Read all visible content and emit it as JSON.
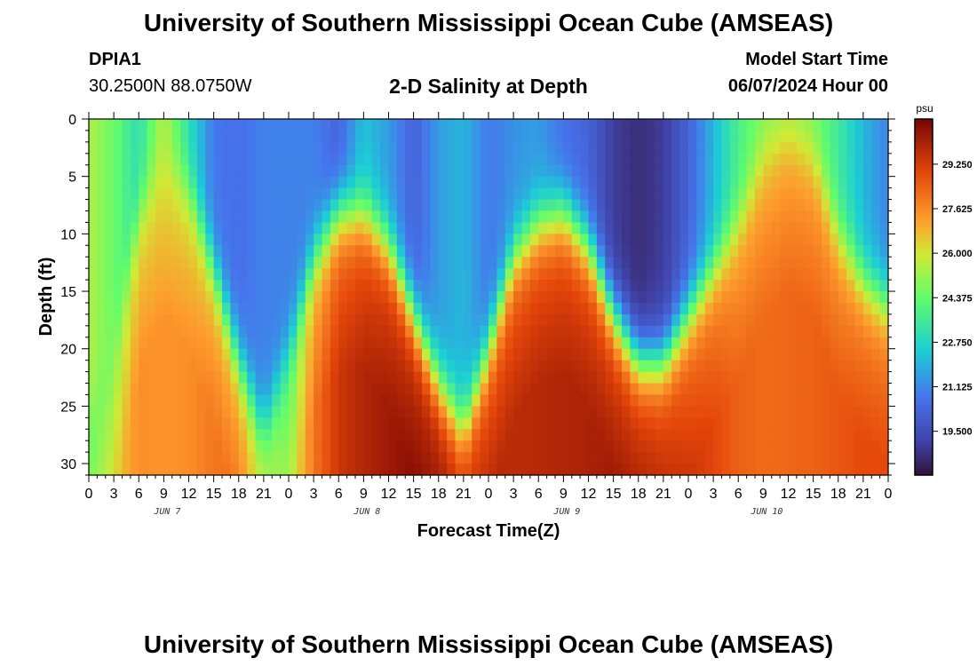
{
  "header": {
    "title": "University of Southern Mississippi Ocean Cube (AMSEAS)",
    "station_id": "DPIA1",
    "coordinates": "30.2500N  88.0750W",
    "subtitle": "2-D Salinity at Depth",
    "model_start_label": "Model Start Time",
    "model_start_value": "06/07/2024 Hour 00"
  },
  "footer": {
    "title": "University of Southern Mississippi Ocean Cube (AMSEAS)"
  },
  "chart_data": {
    "type": "heatmap",
    "title": "2-D Salinity at Depth",
    "xlabel": "Forecast Time(Z)",
    "ylabel": "Depth (ft)",
    "x_ticks": [
      "0",
      "3",
      "6",
      "9",
      "12",
      "15",
      "18",
      "21",
      "0",
      "3",
      "6",
      "9",
      "12",
      "15",
      "18",
      "21",
      "0",
      "3",
      "6",
      "9",
      "12",
      "15",
      "18",
      "21",
      "0",
      "3",
      "6",
      "9",
      "12",
      "15",
      "18",
      "21",
      "0"
    ],
    "date_labels": [
      {
        "label": "JUN 7",
        "hour": 9
      },
      {
        "label": "JUN 8",
        "hour": 33
      },
      {
        "label": "JUN 9",
        "hour": 57
      },
      {
        "label": "JUN 10",
        "hour": 81
      }
    ],
    "xlim": [
      0,
      96
    ],
    "y_ticks": [
      "0",
      "5",
      "10",
      "15",
      "20",
      "25",
      "30"
    ],
    "ylim": [
      0,
      31
    ],
    "colorbar": {
      "unit": "psu",
      "ticks": [
        "29.250",
        "27.625",
        "26.000",
        "24.375",
        "22.750",
        "21.125",
        "19.500"
      ],
      "range": [
        17.9,
        30.9
      ]
    },
    "columns_hours": [
      0,
      3,
      6,
      9,
      12,
      15,
      18,
      21,
      24,
      27,
      30,
      33,
      36,
      39,
      42,
      45,
      48,
      51,
      54,
      57,
      60,
      63,
      66,
      69,
      72,
      75,
      78,
      81,
      84,
      87,
      90,
      93,
      96
    ],
    "halocline_depth_ft": [
      27,
      20,
      8,
      3,
      6,
      13,
      21,
      27,
      20,
      12,
      8,
      8,
      11,
      17,
      23,
      27,
      20,
      12,
      9,
      8,
      11,
      17,
      21,
      21,
      17,
      13,
      9,
      3,
      1,
      3,
      10,
      14,
      16
    ],
    "surface_salinity_psu": [
      25.5,
      24.5,
      23.0,
      25.6,
      23.0,
      20.8,
      20.6,
      21.0,
      21.0,
      21.0,
      20.2,
      22.2,
      21.5,
      20.2,
      21.5,
      22.0,
      20.8,
      21.3,
      21.5,
      20.6,
      20.2,
      19.0,
      18.6,
      19.0,
      20.2,
      22.0,
      23.8,
      24.8,
      24.9,
      24.7,
      23.5,
      22.0,
      21.0
    ],
    "deep_salinity_psu": [
      25.6,
      26.4,
      27.5,
      27.4,
      27.5,
      28.0,
      28.1,
      26.5,
      25.4,
      28.0,
      29.4,
      29.9,
      30.2,
      30.6,
      30.7,
      30.0,
      29.8,
      29.7,
      29.8,
      29.9,
      30.0,
      30.2,
      30.2,
      29.9,
      29.4,
      29.0,
      28.4,
      28.2,
      28.3,
      28.4,
      28.6,
      28.9,
      28.9
    ]
  }
}
